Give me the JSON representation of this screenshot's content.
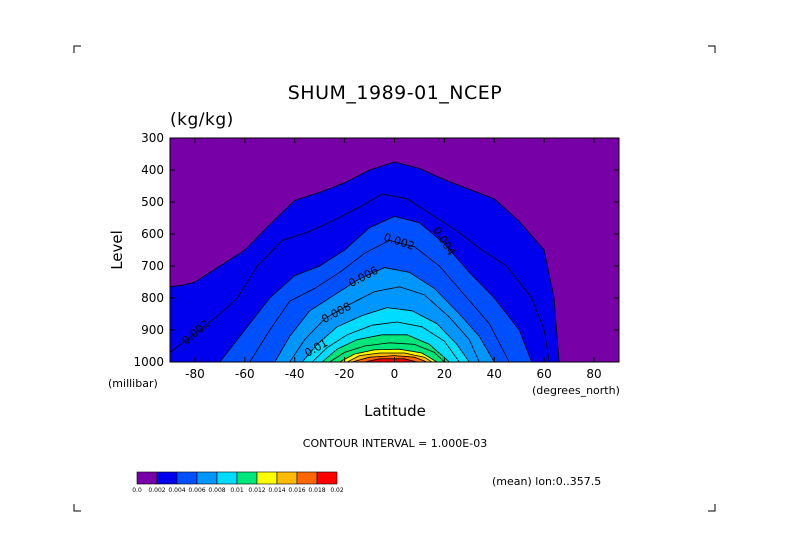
{
  "chart_data": {
    "type": "contour",
    "title": "SHUM_1989-01_NCEP",
    "units": "(kg/kg)",
    "xlabel": "Latitude",
    "ylabel": "Level",
    "x_unit_label": "(degrees_north)",
    "y_unit_label": "(millibar)",
    "xlim": [
      -90,
      90
    ],
    "ylim": [
      300,
      1000
    ],
    "y_inverted": true,
    "x_ticks": [
      -80,
      -60,
      -40,
      -20,
      0,
      20,
      40,
      60,
      80
    ],
    "y_ticks": [
      300,
      400,
      500,
      600,
      700,
      800,
      900,
      1000
    ],
    "contour_interval_text": "CONTOUR INTERVAL = 1.000E-03",
    "mean_note": "(mean) lon:0..357.5",
    "contour_labels": [
      "0.002",
      "0.004",
      "0.002",
      "0.006",
      "0.008",
      "0.01",
      "0.002"
    ],
    "boundaries": [
      {
        "value": 0.001,
        "points": [
          [
            -90,
            765
          ],
          [
            -85,
            760
          ],
          [
            -80,
            750
          ],
          [
            -70,
            700
          ],
          [
            -60,
            650
          ],
          [
            -50,
            570
          ],
          [
            -40,
            495
          ],
          [
            -30,
            470
          ],
          [
            -20,
            440
          ],
          [
            -10,
            400
          ],
          [
            0,
            375
          ],
          [
            10,
            395
          ],
          [
            20,
            430
          ],
          [
            30,
            460
          ],
          [
            40,
            490
          ],
          [
            50,
            560
          ],
          [
            60,
            650
          ],
          [
            64,
            800
          ],
          [
            66,
            1000
          ]
        ]
      },
      {
        "value": 0.002,
        "points": [
          [
            -90,
            970
          ],
          [
            -85,
            940
          ],
          [
            -78,
            900
          ],
          [
            -70,
            850
          ],
          [
            -63,
            800
          ],
          [
            -55,
            700
          ],
          [
            -45,
            620
          ],
          [
            -35,
            595
          ],
          [
            -25,
            560
          ],
          [
            -15,
            520
          ],
          [
            -5,
            475
          ],
          [
            5,
            490
          ],
          [
            15,
            540
          ],
          [
            25,
            590
          ],
          [
            35,
            650
          ],
          [
            45,
            700
          ],
          [
            55,
            800
          ],
          [
            60,
            900
          ],
          [
            62,
            1000
          ]
        ]
      },
      {
        "value": 0.003,
        "points": [
          [
            -70,
            1000
          ],
          [
            -60,
            900
          ],
          [
            -50,
            800
          ],
          [
            -40,
            730
          ],
          [
            -30,
            700
          ],
          [
            -20,
            650
          ],
          [
            -10,
            580
          ],
          [
            0,
            545
          ],
          [
            10,
            565
          ],
          [
            20,
            630
          ],
          [
            30,
            720
          ],
          [
            40,
            800
          ],
          [
            50,
            900
          ],
          [
            55,
            1000
          ]
        ]
      },
      {
        "value": 0.004,
        "points": [
          [
            -58,
            1000
          ],
          [
            -50,
            900
          ],
          [
            -42,
            810
          ],
          [
            -32,
            770
          ],
          [
            -22,
            720
          ],
          [
            -12,
            660
          ],
          [
            -2,
            620
          ],
          [
            8,
            640
          ],
          [
            18,
            700
          ],
          [
            28,
            790
          ],
          [
            38,
            880
          ],
          [
            46,
            1000
          ]
        ]
      },
      {
        "value": 0.005,
        "points": [
          [
            -48,
            1000
          ],
          [
            -42,
            920
          ],
          [
            -34,
            840
          ],
          [
            -24,
            790
          ],
          [
            -14,
            740
          ],
          [
            -4,
            705
          ],
          [
            6,
            720
          ],
          [
            16,
            770
          ],
          [
            26,
            850
          ],
          [
            34,
            920
          ],
          [
            40,
            1000
          ]
        ]
      },
      {
        "value": 0.006,
        "points": [
          [
            -42,
            1000
          ],
          [
            -36,
            930
          ],
          [
            -28,
            865
          ],
          [
            -18,
            820
          ],
          [
            -8,
            780
          ],
          [
            2,
            765
          ],
          [
            12,
            790
          ],
          [
            22,
            860
          ],
          [
            30,
            930
          ],
          [
            34,
            1000
          ]
        ]
      },
      {
        "value": 0.007,
        "points": [
          [
            -37,
            1000
          ],
          [
            -31,
            945
          ],
          [
            -23,
            890
          ],
          [
            -13,
            855
          ],
          [
            -3,
            830
          ],
          [
            7,
            840
          ],
          [
            17,
            880
          ],
          [
            25,
            945
          ],
          [
            30,
            1000
          ]
        ]
      },
      {
        "value": 0.008,
        "points": [
          [
            -33,
            1000
          ],
          [
            -27,
            955
          ],
          [
            -19,
            915
          ],
          [
            -9,
            885
          ],
          [
            1,
            875
          ],
          [
            11,
            890
          ],
          [
            20,
            935
          ],
          [
            26,
            1000
          ]
        ]
      },
      {
        "value": 0.009,
        "points": [
          [
            -29,
            1000
          ],
          [
            -23,
            960
          ],
          [
            -15,
            930
          ],
          [
            -5,
            915
          ],
          [
            5,
            915
          ],
          [
            14,
            945
          ],
          [
            22,
            1000
          ]
        ]
      },
      {
        "value": 0.01,
        "points": [
          [
            -26,
            1000
          ],
          [
            -20,
            970
          ],
          [
            -12,
            950
          ],
          [
            -2,
            940
          ],
          [
            8,
            945
          ],
          [
            16,
            970
          ],
          [
            20,
            1000
          ]
        ]
      },
      {
        "value": 0.011,
        "points": [
          [
            -22,
            1000
          ],
          [
            -16,
            975
          ],
          [
            -8,
            962
          ],
          [
            2,
            960
          ],
          [
            11,
            972
          ],
          [
            17,
            1000
          ]
        ]
      },
      {
        "value": 0.012,
        "points": [
          [
            -19,
            1000
          ],
          [
            -14,
            980
          ],
          [
            -6,
            972
          ],
          [
            4,
            972
          ],
          [
            12,
            985
          ],
          [
            15,
            1000
          ]
        ]
      },
      {
        "value": 0.014,
        "points": [
          [
            -17,
            1000
          ],
          [
            -10,
            985
          ],
          [
            0,
            980
          ],
          [
            8,
            985
          ],
          [
            13,
            1000
          ]
        ]
      },
      {
        "value": 0.016,
        "points": [
          [
            -12,
            1000
          ],
          [
            -6,
            990
          ],
          [
            4,
            990
          ],
          [
            9,
            1000
          ]
        ]
      }
    ],
    "colorbar": {
      "colors": [
        "#7700a6",
        "#0000ee",
        "#0050ff",
        "#0096ff",
        "#00dcff",
        "#00e67a",
        "#ffff00",
        "#ffbb00",
        "#ff6600",
        "#ff0000"
      ],
      "labels": [
        "0.0",
        "0.002",
        "0.004",
        "0.006",
        "0.008",
        "0.01",
        "0.012",
        "0.014",
        "0.016",
        "0.018",
        "0.02"
      ]
    },
    "fill_colors": [
      "#7700a6",
      "#0000ee",
      "#0000ee",
      "#0050ff",
      "#0050ff",
      "#0096ff",
      "#0096ff",
      "#00dcff",
      "#00dcff",
      "#00e67a",
      "#00e67a",
      "#ffff00",
      "#ffbb00",
      "#ff6600",
      "#ff0000"
    ]
  }
}
